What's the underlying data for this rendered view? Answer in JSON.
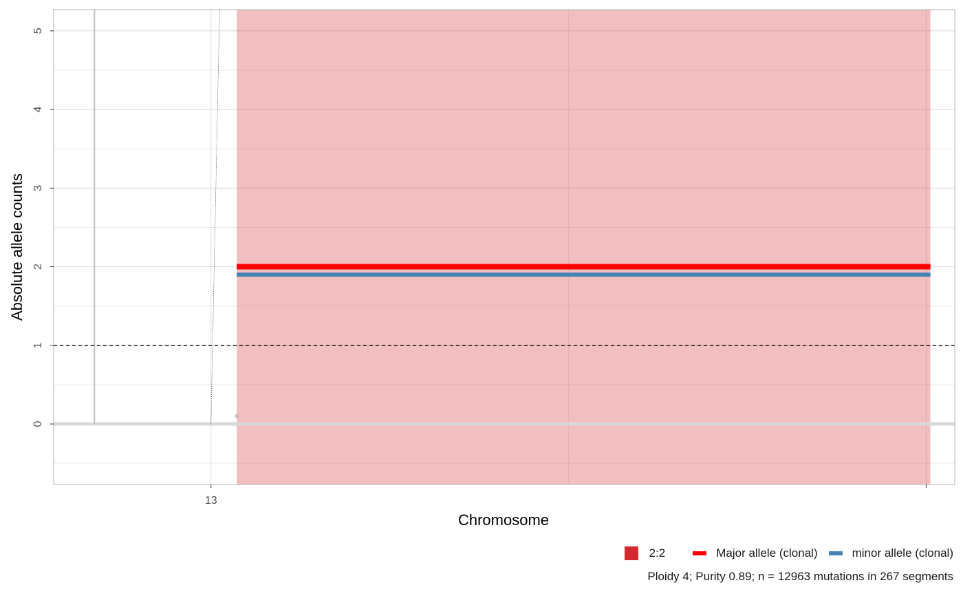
{
  "chart_data": {
    "type": "line",
    "xlabel": "Chromosome",
    "ylabel": "Absolute allele counts",
    "ylim": [
      -0.77,
      5.27
    ],
    "yticks": [
      0,
      1,
      2,
      3,
      4,
      5
    ],
    "xticks": [
      {
        "label": "13",
        "pos": 0.0
      },
      {
        "label": "",
        "pos": 1.0
      }
    ],
    "xlim": [
      -0.22,
      1.04
    ],
    "grid": true,
    "reference_line": {
      "y": 1,
      "style": "dashed"
    },
    "baseline": {
      "y": 0
    },
    "segments": [
      {
        "label": "2:2",
        "color": "#d42a2f",
        "x_start": 0.036,
        "x_end": 1.006
      }
    ],
    "series": [
      {
        "name": "Major allele (clonal)",
        "color": "#ff0000",
        "y": 2.0,
        "x_start": 0.036,
        "x_end": 1.006
      },
      {
        "name": "minor allele (clonal)",
        "color": "#4682b4",
        "y": 1.9,
        "x_start": 0.036,
        "x_end": 1.006
      }
    ],
    "legend_position": "bottom-right"
  },
  "legend": {
    "segment_label": "2:2",
    "major_label": "Major allele (clonal)",
    "minor_label": "minor allele (clonal)"
  },
  "caption": "Ploidy 4; Purity  0.89; n = 12963 mutations in 267 segments",
  "colors": {
    "segment_fill": "#d42a2f",
    "major": "#ff0000",
    "minor": "#4682b4"
  }
}
